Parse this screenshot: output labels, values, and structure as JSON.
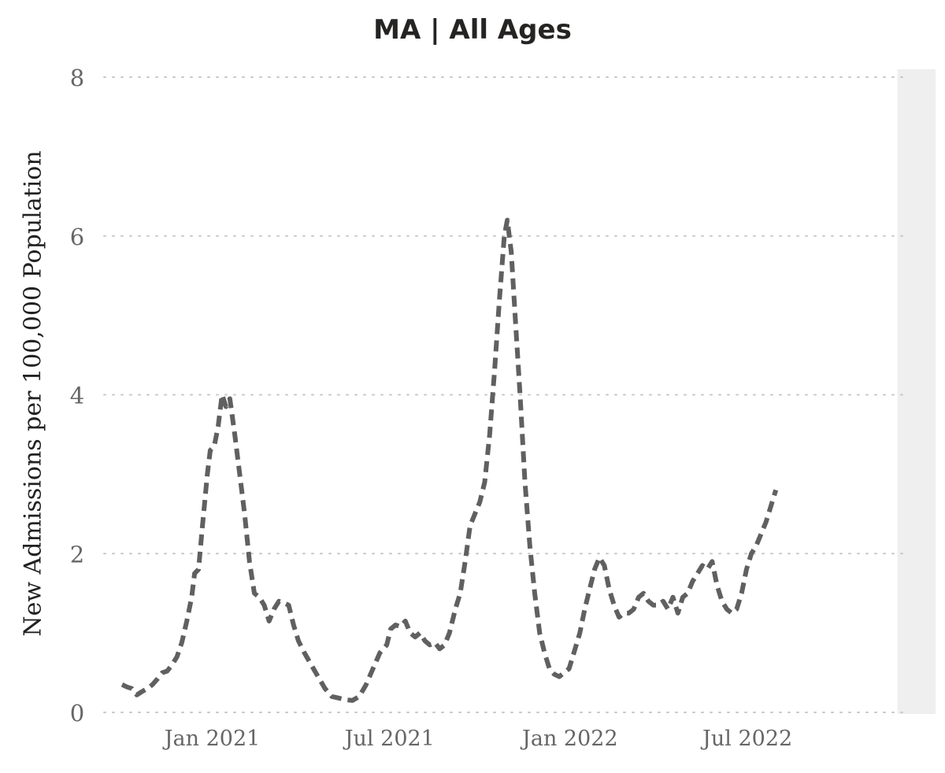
{
  "chart_data": {
    "type": "line",
    "title": "MA | All Ages",
    "xlabel": "",
    "ylabel": "New Admissions per 100,000 Population",
    "x_range": [
      "2020-10-01",
      "2022-12-15"
    ],
    "ylim": [
      0,
      8
    ],
    "y_ticks": [
      "0",
      "2",
      "4",
      "6",
      "8"
    ],
    "x_ticks": [
      {
        "date": "2021-01-01",
        "label": "Jan 2021"
      },
      {
        "date": "2021-07-01",
        "label": "Jul 2021"
      },
      {
        "date": "2022-01-01",
        "label": "Jan 2022"
      },
      {
        "date": "2022-07-01",
        "label": "Jul 2022"
      }
    ],
    "grid": {
      "horizontal": true,
      "style": "dotted"
    },
    "colors": {
      "line": "#606060",
      "incomplete_line": "#b8b8b8",
      "shaded_region": "#efefef",
      "grid": "#c8c8c8",
      "tick_label": "#666666"
    },
    "shaded_region": {
      "from": "2022-12-01",
      "to": "2022-12-15"
    },
    "series": [
      {
        "style": "dashed",
        "points": [
          [
            "2020-10-01",
            0.35
          ],
          [
            "2020-10-06",
            0.32
          ],
          [
            "2020-10-11",
            0.3
          ],
          [
            "2020-10-16",
            0.22
          ],
          [
            "2020-10-21",
            0.26
          ],
          [
            "2020-10-27",
            0.3
          ],
          [
            "2020-11-01",
            0.35
          ],
          [
            "2020-11-06",
            0.42
          ],
          [
            "2020-11-11",
            0.5
          ],
          [
            "2020-11-16",
            0.52
          ],
          [
            "2020-11-21",
            0.6
          ],
          [
            "2020-11-26",
            0.7
          ],
          [
            "2020-12-01",
            0.88
          ],
          [
            "2020-12-06",
            1.15
          ],
          [
            "2020-12-11",
            1.45
          ],
          [
            "2020-12-14",
            1.75
          ],
          [
            "2020-12-18",
            1.8
          ],
          [
            "2020-12-22",
            2.35
          ],
          [
            "2020-12-27",
            3.0
          ],
          [
            "2020-12-30",
            3.3
          ],
          [
            "2021-01-03",
            3.35
          ],
          [
            "2021-01-07",
            3.6
          ],
          [
            "2021-01-11",
            4.0
          ],
          [
            "2021-01-15",
            3.85
          ],
          [
            "2021-01-19",
            3.95
          ],
          [
            "2021-01-24",
            3.5
          ],
          [
            "2021-01-29",
            3.0
          ],
          [
            "2021-02-03",
            2.5
          ],
          [
            "2021-02-08",
            1.9
          ],
          [
            "2021-02-13",
            1.5
          ],
          [
            "2021-02-18",
            1.45
          ],
          [
            "2021-02-23",
            1.35
          ],
          [
            "2021-02-28",
            1.15
          ],
          [
            "2021-03-05",
            1.3
          ],
          [
            "2021-03-10",
            1.4
          ],
          [
            "2021-03-15",
            1.38
          ],
          [
            "2021-03-20",
            1.35
          ],
          [
            "2021-03-25",
            1.1
          ],
          [
            "2021-03-30",
            0.9
          ],
          [
            "2021-04-05",
            0.75
          ],
          [
            "2021-04-12",
            0.6
          ],
          [
            "2021-04-19",
            0.45
          ],
          [
            "2021-04-26",
            0.3
          ],
          [
            "2021-05-03",
            0.2
          ],
          [
            "2021-05-10",
            0.18
          ],
          [
            "2021-05-17",
            0.16
          ],
          [
            "2021-05-24",
            0.15
          ],
          [
            "2021-05-31",
            0.2
          ],
          [
            "2021-06-07",
            0.35
          ],
          [
            "2021-06-14",
            0.55
          ],
          [
            "2021-06-21",
            0.75
          ],
          [
            "2021-06-28",
            0.85
          ],
          [
            "2021-07-02",
            1.05
          ],
          [
            "2021-07-07",
            1.1
          ],
          [
            "2021-07-12",
            1.08
          ],
          [
            "2021-07-17",
            1.15
          ],
          [
            "2021-07-22",
            1.0
          ],
          [
            "2021-07-27",
            0.95
          ],
          [
            "2021-08-01",
            1.0
          ],
          [
            "2021-08-06",
            0.9
          ],
          [
            "2021-08-11",
            0.85
          ],
          [
            "2021-08-16",
            0.88
          ],
          [
            "2021-08-21",
            0.8
          ],
          [
            "2021-08-26",
            0.85
          ],
          [
            "2021-08-31",
            1.0
          ],
          [
            "2021-09-06",
            1.3
          ],
          [
            "2021-09-11",
            1.5
          ],
          [
            "2021-09-16",
            1.9
          ],
          [
            "2021-09-21",
            2.35
          ],
          [
            "2021-09-26",
            2.5
          ],
          [
            "2021-10-01",
            2.65
          ],
          [
            "2021-10-06",
            2.9
          ],
          [
            "2021-10-11",
            3.5
          ],
          [
            "2021-10-16",
            4.3
          ],
          [
            "2021-10-21",
            5.2
          ],
          [
            "2021-10-26",
            6.0
          ],
          [
            "2021-10-29",
            6.2
          ],
          [
            "2021-11-02",
            5.8
          ],
          [
            "2021-11-06",
            5.0
          ],
          [
            "2021-11-11",
            4.0
          ],
          [
            "2021-11-16",
            2.9
          ],
          [
            "2021-11-21",
            2.1
          ],
          [
            "2021-11-26",
            1.5
          ],
          [
            "2021-12-01",
            1.0
          ],
          [
            "2021-12-06",
            0.75
          ],
          [
            "2021-12-11",
            0.55
          ],
          [
            "2021-12-16",
            0.48
          ],
          [
            "2021-12-21",
            0.45
          ],
          [
            "2021-12-26",
            0.5
          ],
          [
            "2021-12-31",
            0.55
          ],
          [
            "2022-01-05",
            0.75
          ],
          [
            "2022-01-11",
            1.0
          ],
          [
            "2022-01-16",
            1.3
          ],
          [
            "2022-01-21",
            1.55
          ],
          [
            "2022-01-26",
            1.8
          ],
          [
            "2022-01-31",
            1.95
          ],
          [
            "2022-02-05",
            1.85
          ],
          [
            "2022-02-10",
            1.55
          ],
          [
            "2022-02-15",
            1.35
          ],
          [
            "2022-02-20",
            1.2
          ],
          [
            "2022-02-25",
            1.25
          ],
          [
            "2022-03-02",
            1.25
          ],
          [
            "2022-03-07",
            1.3
          ],
          [
            "2022-03-12",
            1.45
          ],
          [
            "2022-03-17",
            1.5
          ],
          [
            "2022-03-22",
            1.4
          ],
          [
            "2022-03-27",
            1.35
          ],
          [
            "2022-04-01",
            1.35
          ],
          [
            "2022-04-06",
            1.4
          ],
          [
            "2022-04-11",
            1.3
          ],
          [
            "2022-04-16",
            1.45
          ],
          [
            "2022-04-21",
            1.25
          ],
          [
            "2022-04-26",
            1.45
          ],
          [
            "2022-05-01",
            1.5
          ],
          [
            "2022-05-06",
            1.65
          ],
          [
            "2022-05-11",
            1.75
          ],
          [
            "2022-05-16",
            1.85
          ],
          [
            "2022-05-21",
            1.8
          ],
          [
            "2022-05-26",
            1.9
          ],
          [
            "2022-05-31",
            1.6
          ],
          [
            "2022-06-05",
            1.4
          ],
          [
            "2022-06-10",
            1.3
          ],
          [
            "2022-06-15",
            1.25
          ],
          [
            "2022-06-20",
            1.3
          ],
          [
            "2022-06-25",
            1.5
          ],
          [
            "2022-06-30",
            1.8
          ],
          [
            "2022-07-05",
            2.0
          ],
          [
            "2022-07-10",
            2.1
          ],
          [
            "2022-07-15",
            2.25
          ],
          [
            "2022-07-20",
            2.4
          ],
          [
            "2022-07-25",
            2.6
          ],
          [
            "2022-07-30",
            2.8
          ]
        ]
      }
    ]
  }
}
